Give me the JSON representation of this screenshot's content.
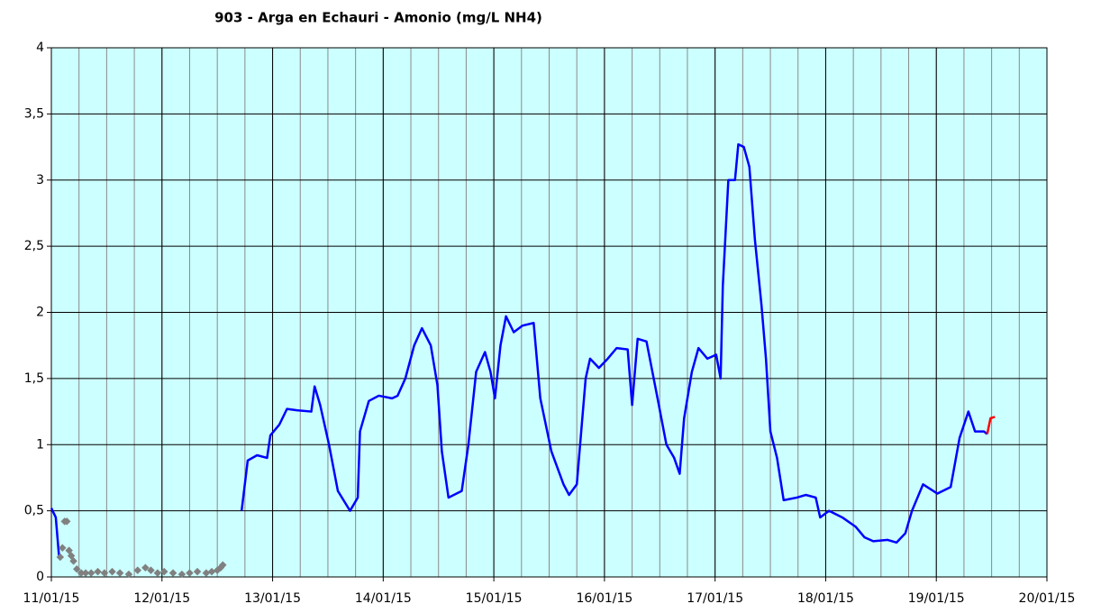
{
  "chart_data": {
    "type": "line",
    "title": "903 - Arga en Echauri - Amonio (mg/L NH4)",
    "xlim": [
      0,
      9
    ],
    "ylim": [
      0,
      4
    ],
    "xticks": [
      {
        "value": 0,
        "label": "11/01/15"
      },
      {
        "value": 1,
        "label": "12/01/15"
      },
      {
        "value": 2,
        "label": "13/01/15"
      },
      {
        "value": 3,
        "label": "14/01/15"
      },
      {
        "value": 4,
        "label": "15/01/15"
      },
      {
        "value": 5,
        "label": "16/01/15"
      },
      {
        "value": 6,
        "label": "17/01/15"
      },
      {
        "value": 7,
        "label": "18/01/15"
      },
      {
        "value": 8,
        "label": "19/01/15"
      },
      {
        "value": 9,
        "label": "20/01/15"
      }
    ],
    "yticks": [
      0,
      {
        "value": 0.5,
        "label": "0,5"
      },
      1,
      {
        "value": 1.5,
        "label": "1,5"
      },
      2,
      {
        "value": 2.5,
        "label": "2,5"
      },
      3,
      {
        "value": 3.5,
        "label": "3,5"
      },
      4
    ],
    "xminor_step": 0.25,
    "grid": true,
    "background": "#ccffff",
    "series": [
      {
        "color": "#0000ff",
        "marker": false,
        "x": [
          0,
          0.04,
          0.07,
          0.1
        ],
        "values": [
          0.52,
          0.45,
          0.15,
          0.15
        ]
      },
      {
        "color": "#808080",
        "marker": true,
        "x": [
          0.08,
          0.1,
          0.12,
          0.14,
          0.16,
          0.18,
          0.2,
          0.23,
          0.27,
          0.31,
          0.36,
          0.42,
          0.48,
          0.55,
          0.62,
          0.7,
          0.78,
          0.85,
          0.9,
          0.96,
          1.02,
          1.1,
          1.18,
          1.25,
          1.32,
          1.4,
          1.45,
          1.5,
          1.53,
          1.55
        ],
        "values": [
          0.15,
          0.22,
          0.42,
          0.42,
          0.2,
          0.16,
          0.12,
          0.06,
          0.03,
          0.03,
          0.03,
          0.04,
          0.03,
          0.04,
          0.03,
          0.02,
          0.05,
          0.07,
          0.05,
          0.03,
          0.04,
          0.03,
          0.02,
          0.03,
          0.04,
          0.03,
          0.04,
          0.05,
          0.07,
          0.09
        ]
      },
      {
        "color": "#0000ff",
        "marker": false,
        "x": [
          1.72,
          1.775,
          1.86,
          1.95,
          1.98,
          2.06,
          2.13,
          2.22,
          2.35,
          2.38,
          2.43,
          2.51,
          2.59,
          2.7,
          2.77,
          2.79,
          2.87,
          2.96,
          3.08,
          3.13,
          3.2,
          3.28,
          3.35,
          3.43,
          3.49,
          3.53,
          3.59,
          3.71,
          3.77,
          3.84,
          3.92,
          3.97,
          4.01,
          4.06,
          4.11,
          4.18,
          4.26,
          4.36,
          4.42,
          4.52,
          4.63,
          4.68,
          4.75,
          4.83,
          4.87,
          4.95,
          5.03,
          5.11,
          5.21,
          5.25,
          5.3,
          5.38,
          5.48,
          5.56,
          5.63,
          5.68,
          5.72,
          5.79,
          5.85,
          5.93,
          6.01,
          6.05,
          6.07,
          6.12,
          6.18,
          6.21,
          6.26,
          6.31,
          6.36,
          6.42,
          6.46,
          6.5,
          6.56,
          6.62,
          6.74,
          6.82,
          6.91,
          6.95,
          7.03,
          7.15,
          7.27,
          7.35,
          7.43,
          7.56,
          7.64,
          7.72,
          7.78,
          7.88,
          8.01,
          8.13,
          8.21,
          8.29,
          8.35,
          8.43,
          8.46
        ],
        "values": [
          0.5,
          0.88,
          0.92,
          0.9,
          1.07,
          1.15,
          1.27,
          1.26,
          1.25,
          1.44,
          1.3,
          1.0,
          0.65,
          0.5,
          0.6,
          1.1,
          1.33,
          1.37,
          1.35,
          1.37,
          1.5,
          1.75,
          1.88,
          1.75,
          1.45,
          0.95,
          0.6,
          0.65,
          1.0,
          1.55,
          1.7,
          1.55,
          1.35,
          1.75,
          1.97,
          1.85,
          1.9,
          1.92,
          1.35,
          0.95,
          0.7,
          0.62,
          0.7,
          1.5,
          1.65,
          1.58,
          1.65,
          1.73,
          1.72,
          1.3,
          1.8,
          1.78,
          1.35,
          1.0,
          0.9,
          0.78,
          1.2,
          1.55,
          1.73,
          1.65,
          1.68,
          1.5,
          2.2,
          3.0,
          3.0,
          3.27,
          3.25,
          3.1,
          2.55,
          2.05,
          1.65,
          1.1,
          0.9,
          0.58,
          0.6,
          0.62,
          0.6,
          0.45,
          0.5,
          0.45,
          0.38,
          0.3,
          0.27,
          0.28,
          0.26,
          0.33,
          0.5,
          0.7,
          0.63,
          0.68,
          1.05,
          1.25,
          1.1,
          1.1,
          1.08
        ]
      },
      {
        "color": "#ff0000",
        "marker": false,
        "x": [
          8.46,
          8.49,
          8.53
        ],
        "values": [
          1.08,
          1.2,
          1.21
        ]
      }
    ]
  }
}
